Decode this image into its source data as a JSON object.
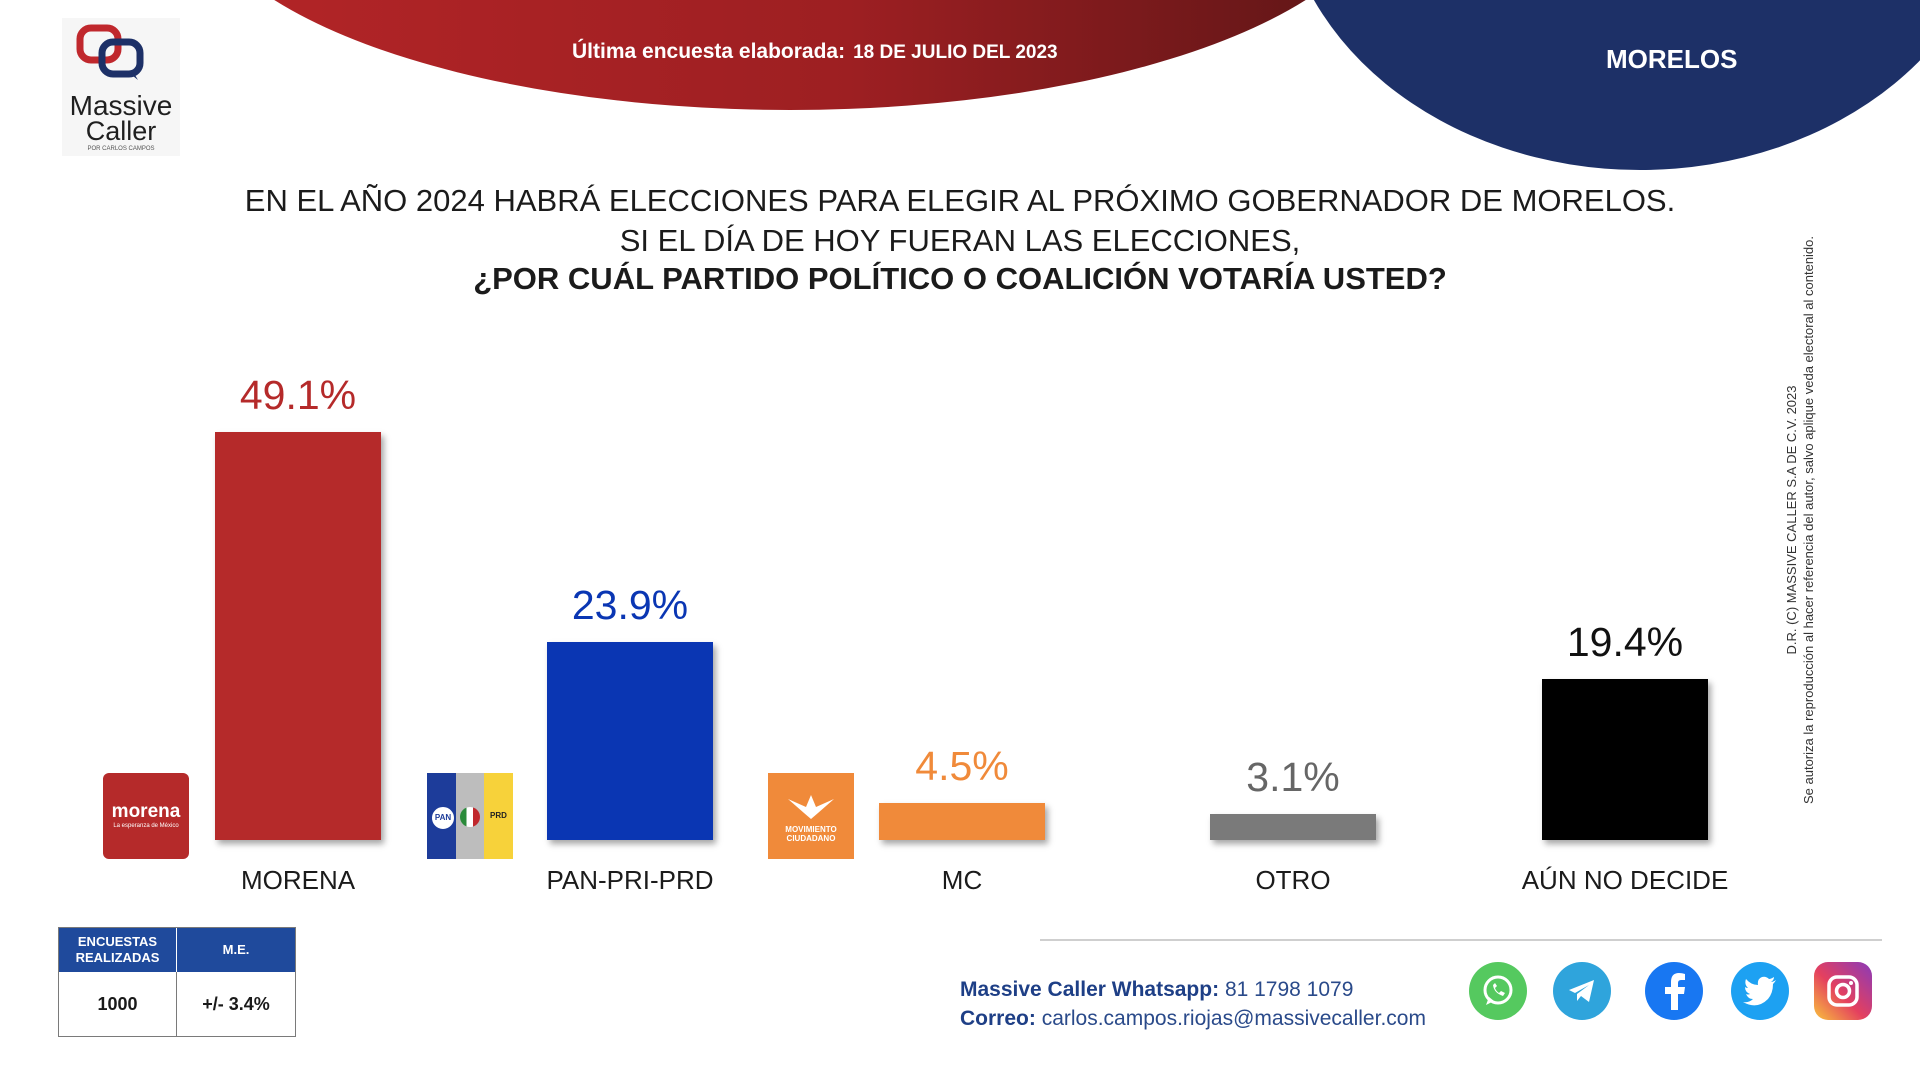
{
  "header": {
    "survey_label": "Última encuesta elaborada:",
    "survey_date": "18 DE JULIO DEL 2023",
    "state": "MORELOS"
  },
  "logo": {
    "line1": "Massive",
    "line2": "Caller",
    "line3": "POR CARLOS CAMPOS"
  },
  "question": {
    "line1": "EN EL AÑO 2024 HABRÁ ELECCIONES PARA ELEGIR AL PRÓXIMO GOBERNADOR DE MORELOS.",
    "line2": "SI EL DÍA DE HOY FUERAN LAS ELECCIONES,",
    "line3": "¿POR CUÁL PARTIDO POLÍTICO O COALICIÓN VOTARÍA USTED?"
  },
  "chart_data": {
    "type": "bar",
    "title": "¿POR CUÁL PARTIDO POLÍTICO O COALICIÓN VOTARÍA USTED?",
    "categories": [
      "MORENA",
      "PAN-PRI-PRD",
      "MC",
      "OTRO",
      "AÚN NO DECIDE"
    ],
    "values": [
      49.1,
      23.9,
      4.5,
      3.1,
      19.4
    ],
    "value_labels": [
      "49.1%",
      "23.9%",
      "4.5%",
      "3.1%",
      "19.4%"
    ],
    "colors": [
      "#b52a2a",
      "#0a36b3",
      "#f08a3a",
      "#7a7a7a",
      "#000000"
    ],
    "label_colors": [
      "#b52a2a",
      "#0a36b3",
      "#f08a3a",
      "#666666",
      "#111111"
    ],
    "ylim": [
      0,
      50
    ],
    "grid": false,
    "legend": "none"
  },
  "party_logos": {
    "morena": {
      "name": "morena",
      "tagline": "La esperanza de México",
      "color": "#b52a2a"
    },
    "coalition": {
      "pan": "PAN",
      "prd": "PRD"
    },
    "mc": {
      "line1": "MOVIMIENTO",
      "line2": "CIUDADANO",
      "color": "#f08a3a"
    }
  },
  "copyright": {
    "line1": "D.R. (C) MASSIVE CALLER S.A DE C.V. 2023",
    "line2": "Se autoriza la reproducción al hacer referencia del autor, salvo aplique veda electoral al contenido."
  },
  "stats_table": {
    "col1_header": "ENCUESTAS REALIZADAS",
    "col2_header": "M.E.",
    "col1_value": "1000",
    "col2_value": "+/- 3.4%"
  },
  "footer": {
    "whatsapp_label": "Massive Caller Whatsapp:",
    "whatsapp_number": "81 1798 1079",
    "email_label": "Correo:",
    "email": "carlos.campos.riojas@massivecaller.com",
    "social_icons": [
      "whatsapp-icon",
      "telegram-icon",
      "facebook-icon",
      "twitter-icon",
      "instagram-icon"
    ]
  }
}
